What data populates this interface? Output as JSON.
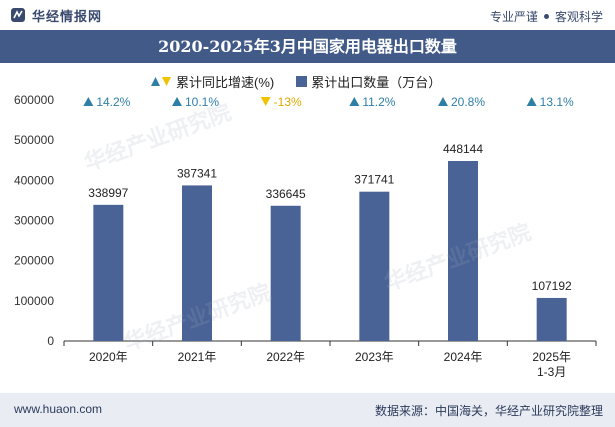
{
  "header": {
    "brand": "华经情报网",
    "slogan_left": "专业严谨",
    "slogan_right": "客观科学"
  },
  "title": "2020-2025年3月中国家用电器出口数量",
  "legend": {
    "growth_label": "累计同比增速(%)",
    "bar_label": "累计出口数量（万台）"
  },
  "footer": {
    "url": "www.huaon.com",
    "source": "数据来源：中国海关，华经产业研究院整理"
  },
  "watermark": "华经产业研究院",
  "colors": {
    "bar": "#4a6396",
    "up": "#2e7fa6",
    "down": "#f2c200",
    "growth_up_text": "#2e7fa6",
    "growth_down_text": "#e0a800"
  },
  "chart_data": {
    "type": "bar",
    "categories": [
      "2020年",
      "2021年",
      "2022年",
      "2023年",
      "2024年",
      "2025年\n1-3月"
    ],
    "category_lines": [
      [
        "2020年"
      ],
      [
        "2021年"
      ],
      [
        "2022年"
      ],
      [
        "2023年"
      ],
      [
        "2024年"
      ],
      [
        "2025年",
        "1-3月"
      ]
    ],
    "series": [
      {
        "name": "累计出口数量（万台）",
        "values": [
          338997,
          387341,
          336645,
          371741,
          448144,
          107192
        ]
      },
      {
        "name": "累计同比增速(%)",
        "values": [
          14.2,
          10.1,
          -13,
          11.2,
          20.8,
          13.1
        ],
        "labels": [
          "14.2%",
          "10.1%",
          "-13%",
          "11.2%",
          "20.8%",
          "13.1%"
        ]
      }
    ],
    "ylim": [
      0,
      600000
    ],
    "yticks": [
      0,
      100000,
      200000,
      300000,
      400000,
      500000,
      600000
    ],
    "title": "2020-2025年3月中国家用电器出口数量",
    "xlabel": "",
    "ylabel": ""
  }
}
